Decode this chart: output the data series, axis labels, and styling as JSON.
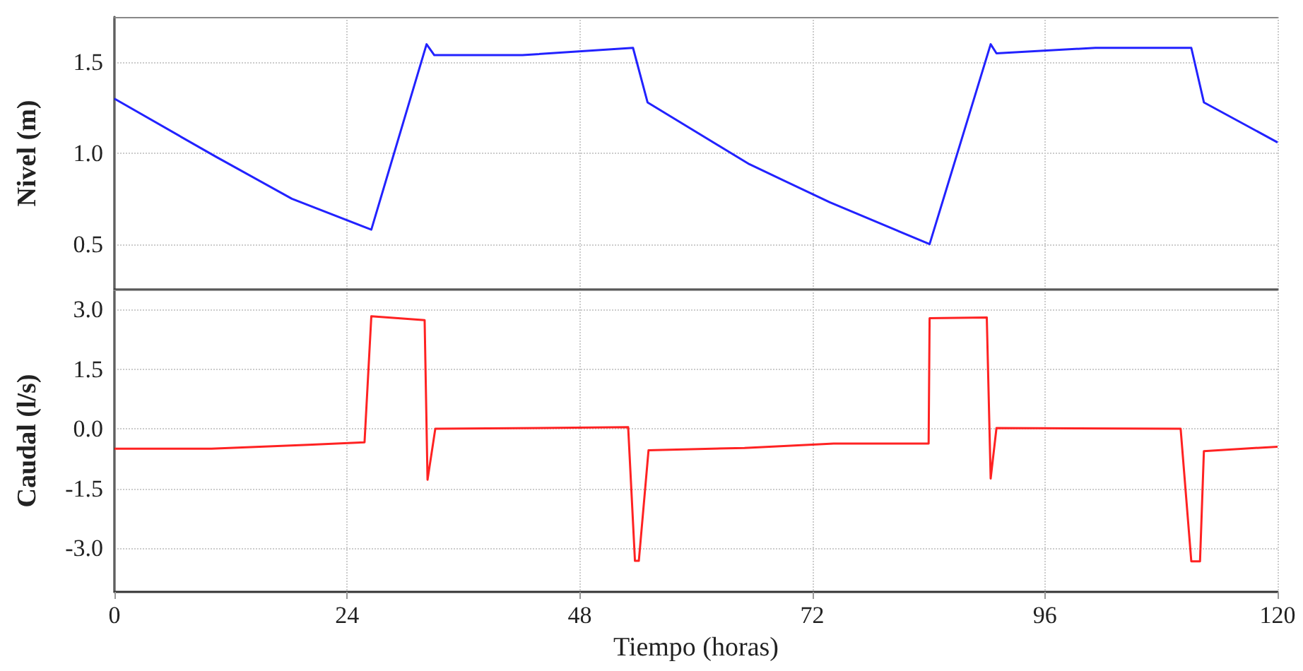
{
  "chart_data": [
    {
      "type": "line",
      "ylabel": "Nivel (m)",
      "xlim": [
        0,
        120
      ],
      "xticks": [
        0,
        24,
        48,
        72,
        96,
        120
      ],
      "ylim": [
        0.25,
        1.75
      ],
      "yticks": [
        {
          "value": 0.5,
          "label": "0.5"
        },
        {
          "value": 1,
          "label": "1.0"
        },
        {
          "value": 1.5,
          "label": "1.5"
        }
      ],
      "tick_labels": "y",
      "grid": true,
      "series": [
        {
          "color": "#2222ff",
          "x": [
            0,
            10.5,
            18.3,
            26.5,
            32.2,
            33.0,
            42.1,
            53.5,
            55.0,
            65.5,
            73.8,
            84.1,
            90.4,
            91.0,
            101.2,
            111.1,
            112.4,
            120
          ],
          "values": [
            1.3,
            0.98,
            0.75,
            0.58,
            1.6,
            1.54,
            1.54,
            1.58,
            1.28,
            0.94,
            0.73,
            0.5,
            1.6,
            1.55,
            1.58,
            1.58,
            1.28,
            1.06
          ]
        }
      ]
    },
    {
      "type": "line",
      "ylabel": "Caudal (l/s)",
      "xlabel": "Tiempo (horas)",
      "xlim": [
        0,
        120
      ],
      "xticks": [
        0,
        24,
        48,
        72,
        96,
        120
      ],
      "ylim": [
        -4.1,
        3.5
      ],
      "yticks": [
        {
          "value": -3,
          "label": "-3.0"
        },
        {
          "value": -1.5,
          "label": "-1.5"
        },
        {
          "value": 0,
          "label": "0.0"
        },
        {
          "value": 1.5,
          "label": "1.5"
        },
        {
          "value": 3,
          "label": "3.0"
        }
      ],
      "grid": true,
      "series": [
        {
          "color": "#ff2222",
          "x": [
            0,
            10,
            20,
            25.8,
            26.5,
            32,
            32.3,
            33.1,
            53,
            53.7,
            54.1,
            55.1,
            65,
            74.2,
            84,
            84.1,
            90,
            90.4,
            91,
            110,
            111.1,
            112,
            112.4,
            120
          ],
          "values": [
            -0.5,
            -0.5,
            -0.4,
            -0.34,
            2.83,
            2.73,
            -1.28,
            0,
            0.04,
            -3.32,
            -3.32,
            -0.54,
            -0.48,
            -0.37,
            -0.37,
            2.78,
            2.8,
            -1.25,
            0.02,
            0,
            -3.33,
            -3.33,
            -0.56,
            -0.45
          ]
        }
      ]
    }
  ]
}
